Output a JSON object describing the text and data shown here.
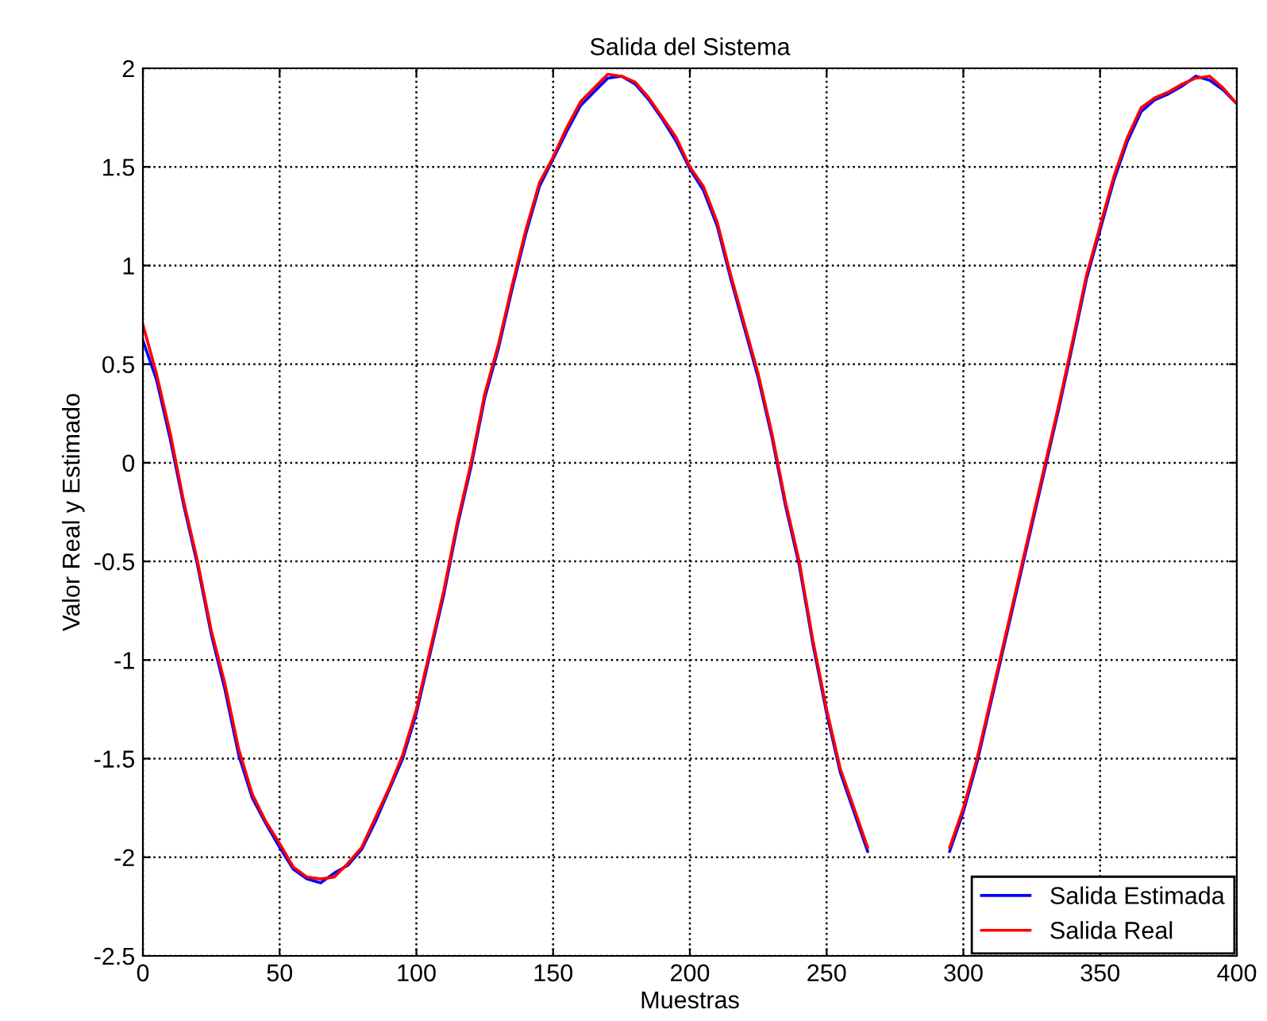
{
  "chart_data": {
    "type": "line",
    "title": "Salida del Sistema",
    "xlabel": "Muestras",
    "ylabel": "Valor Real y Estimado",
    "x": [
      0,
      5,
      10,
      15,
      20,
      25,
      30,
      35,
      40,
      45,
      50,
      55,
      60,
      65,
      70,
      75,
      80,
      85,
      90,
      95,
      100,
      105,
      110,
      115,
      120,
      125,
      130,
      135,
      140,
      145,
      150,
      155,
      160,
      165,
      170,
      175,
      180,
      185,
      190,
      195,
      200,
      205,
      210,
      215,
      220,
      225,
      230,
      235,
      240,
      245,
      250,
      255,
      260,
      265,
      270,
      275,
      280,
      285,
      290,
      295,
      300,
      305,
      310,
      315,
      320,
      325,
      330,
      335,
      340,
      345,
      350,
      355,
      360,
      365,
      370,
      375,
      380,
      385,
      390,
      395,
      400
    ],
    "series": [
      {
        "name": "Salida Estimada",
        "color": "#0000ff",
        "values": [
          0.62,
          0.42,
          0.12,
          -0.22,
          -0.52,
          -0.87,
          -1.15,
          -1.48,
          -1.7,
          -1.83,
          -1.95,
          -2.06,
          -2.11,
          -2.13,
          -2.08,
          -2.04,
          -1.96,
          -1.82,
          -1.66,
          -1.5,
          -1.27,
          -0.97,
          -0.67,
          -0.32,
          -0.02,
          0.33,
          0.58,
          0.88,
          1.16,
          1.4,
          1.54,
          1.68,
          1.81,
          1.88,
          1.95,
          1.96,
          1.92,
          1.84,
          1.74,
          1.63,
          1.49,
          1.38,
          1.2,
          0.93,
          0.68,
          0.43,
          0.13,
          -0.22,
          -0.52,
          -0.92,
          -1.27,
          -1.57,
          -1.77,
          -1.97,
          null,
          null,
          null,
          null,
          null,
          -1.97,
          -1.77,
          -1.52,
          -1.22,
          -0.92,
          -0.62,
          -0.32,
          -0.02,
          0.28,
          0.6,
          0.93,
          1.18,
          1.43,
          1.63,
          1.78,
          1.84,
          1.87,
          1.91,
          1.96,
          1.94,
          1.89,
          1.82
        ]
      },
      {
        "name": "Salida Real",
        "color": "#ff0000",
        "values": [
          0.7,
          0.45,
          0.15,
          -0.2,
          -0.5,
          -0.85,
          -1.12,
          -1.45,
          -1.68,
          -1.82,
          -1.93,
          -2.05,
          -2.1,
          -2.11,
          -2.1,
          -2.03,
          -1.95,
          -1.8,
          -1.65,
          -1.48,
          -1.25,
          -0.95,
          -0.65,
          -0.3,
          0.0,
          0.35,
          0.6,
          0.9,
          1.18,
          1.42,
          1.55,
          1.7,
          1.83,
          1.9,
          1.97,
          1.96,
          1.93,
          1.85,
          1.75,
          1.65,
          1.5,
          1.4,
          1.22,
          0.95,
          0.7,
          0.45,
          0.15,
          -0.2,
          -0.5,
          -0.9,
          -1.25,
          -1.55,
          -1.75,
          -1.95,
          null,
          null,
          null,
          null,
          null,
          -1.95,
          -1.75,
          -1.5,
          -1.2,
          -0.9,
          -0.6,
          -0.3,
          0.0,
          0.3,
          0.62,
          0.95,
          1.2,
          1.45,
          1.65,
          1.8,
          1.85,
          1.88,
          1.92,
          1.95,
          1.96,
          1.9,
          1.82
        ]
      }
    ],
    "xlim": [
      0,
      400
    ],
    "xticks": [
      0,
      50,
      100,
      150,
      200,
      250,
      300,
      350,
      400
    ],
    "ylim": [
      -2.5,
      2
    ],
    "yticks": [
      -2.5,
      -2,
      -1.5,
      -1,
      -0.5,
      0,
      0.5,
      1,
      1.5,
      2
    ],
    "grid": true,
    "legend": "lower right"
  }
}
